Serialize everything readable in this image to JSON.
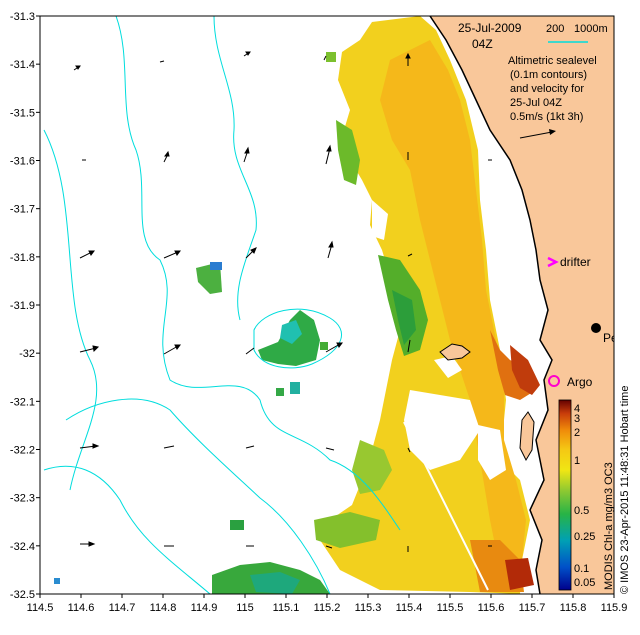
{
  "map": {
    "date": "25-Jul-2009",
    "time": "04Z",
    "scale_200": "200",
    "scale_1000": "1000m",
    "legend_lines": [
      "Altimetric sealevel",
      "(0.1m contours)",
      "and velocity for",
      "25-Jul 04Z",
      "0.5m/s (1kt 3h)"
    ],
    "places": {
      "perth": "Perth",
      "drifter": "drifter",
      "argo": "Argo"
    },
    "lat_ticks": [
      "-31.3",
      "-31.4",
      "-31.5",
      "-31.6",
      "-31.7",
      "-31.8",
      "-31.9",
      "-32",
      "-32.1",
      "-32.2",
      "-32.3",
      "-32.4",
      "-32.5"
    ],
    "lon_ticks": [
      "114.5",
      "114.6",
      "114.7",
      "114.8",
      "114.9",
      "115",
      "115.1",
      "115.2",
      "115.3",
      "115.4",
      "115.5",
      "115.6",
      "115.7",
      "115.8",
      "115.9"
    ],
    "colorbar": {
      "labels": [
        "4",
        "3",
        "2",
        "1",
        "0.5",
        "0.25",
        "0.1",
        "0.05"
      ],
      "title": "MODIS Chl-a mg/m3 OC3"
    },
    "credit": "© IMOS 23-Apr-2015 11:48:31 Hobart time",
    "colors": {
      "land": "#f9c79a",
      "contour": "#00dddd",
      "drifter_marker": "#ff00ff",
      "argo_marker": "#ff00cc"
    }
  }
}
